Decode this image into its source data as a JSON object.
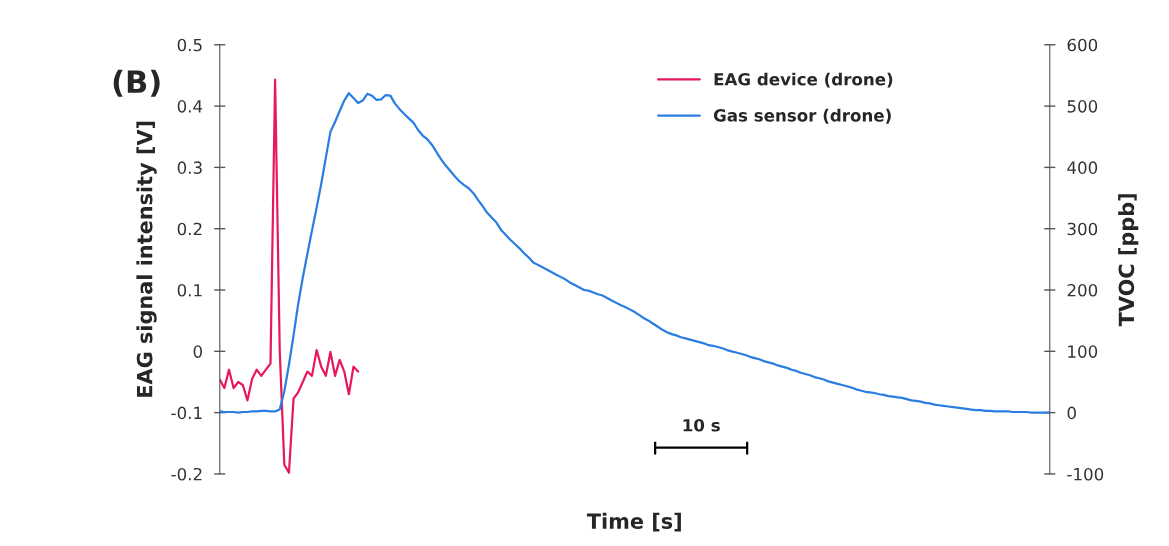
{
  "chart_data": {
    "type": "line",
    "title": "(B)",
    "xlabel": "Time [s]",
    "ylabel": "EAG signal intensity [V]",
    "y2label": "TVOC [ppb]",
    "categories": [
      null,
      null,
      null,
      null,
      null,
      null,
      null,
      null,
      null,
      null,
      null,
      null,
      null,
      null,
      null,
      null,
      null,
      null,
      null,
      null,
      null,
      null,
      null,
      null,
      null,
      null,
      null,
      null,
      null,
      null,
      null,
      null,
      null,
      null,
      null,
      null,
      null,
      null,
      null,
      null,
      null,
      null,
      null,
      null,
      null,
      null,
      null,
      null,
      null,
      null,
      null,
      null,
      null,
      null,
      null,
      null,
      null,
      null,
      null,
      null,
      null,
      null,
      null,
      null,
      null,
      null,
      null,
      null,
      null,
      null,
      null,
      null,
      null,
      null,
      null,
      null,
      null,
      null,
      null,
      null,
      null,
      null,
      null,
      null,
      null,
      null,
      null,
      null,
      null,
      null,
      null,
      null,
      null,
      null,
      null,
      null,
      null,
      null,
      null,
      null,
      null,
      null,
      null,
      null,
      null,
      null,
      null,
      null,
      null,
      null,
      null,
      null,
      null,
      null,
      null,
      null,
      null,
      null,
      null,
      null,
      null,
      null,
      null,
      null,
      null,
      null,
      null,
      null,
      null,
      null,
      null,
      null,
      null,
      null,
      null,
      null,
      null,
      null,
      null,
      null,
      null,
      null,
      null,
      null,
      null,
      null,
      null,
      null,
      null,
      null,
      null,
      null,
      null,
      null,
      null,
      null,
      null,
      null,
      null,
      null,
      null,
      null,
      null,
      null,
      null,
      null,
      null,
      null,
      null,
      null,
      null,
      null,
      null,
      null,
      null,
      null,
      null,
      null,
      null,
      null,
      null
    ],
    "ylim": [
      -0.2,
      0.5
    ],
    "yticks": [
      -0.2,
      -0.1,
      0,
      0.1,
      0.2,
      0.3,
      0.4,
      0.5
    ],
    "y2lim": [
      -100,
      600
    ],
    "y2ticks": [
      -100,
      0,
      100,
      200,
      300,
      400,
      500,
      600
    ],
    "tick_labels": "y",
    "grid": false,
    "legend": "top right",
    "annotations": [
      "10 s"
    ],
    "series": [
      {
        "name": "EAG device (drone)",
        "color": "#e8195a",
        "values": [
          -0.046,
          -0.06,
          -0.03,
          -0.06,
          -0.05,
          -0.055,
          -0.08,
          -0.045,
          -0.03,
          -0.04,
          -0.03,
          -0.02,
          0.443,
          0.002,
          -0.185,
          -0.198,
          -0.077,
          -0.067,
          -0.05,
          -0.033,
          -0.04,
          0.002,
          -0.025,
          -0.04,
          -0.001,
          -0.04,
          -0.014,
          -0.033,
          -0.07,
          -0.025,
          -0.033,
          null,
          null,
          null,
          null,
          null,
          null,
          null,
          null,
          null,
          null,
          null,
          null,
          null,
          null,
          null,
          null,
          null,
          null,
          null,
          null,
          null,
          null,
          null,
          null,
          null,
          null,
          null,
          null,
          null,
          null,
          null,
          null,
          null,
          null,
          null,
          null,
          null,
          null,
          null,
          null,
          null,
          null,
          null,
          null,
          null,
          null,
          null,
          null,
          null,
          null,
          null,
          null,
          null,
          null,
          null,
          null,
          null,
          null,
          null,
          null,
          null,
          null,
          null,
          null,
          null,
          null,
          null,
          null,
          null,
          null,
          null,
          null,
          null,
          null,
          null,
          null,
          null,
          null,
          null,
          null,
          null,
          null,
          null,
          null,
          null,
          null,
          null,
          null,
          null,
          null,
          null,
          null,
          null,
          null,
          null,
          null,
          null,
          null,
          null,
          null,
          null,
          null,
          null,
          null,
          null,
          null,
          null,
          null,
          null,
          null,
          null,
          null,
          null,
          null,
          null,
          null,
          null,
          null,
          null,
          null,
          null,
          null,
          null,
          null,
          null,
          null,
          null,
          null,
          null,
          null,
          null,
          null,
          null,
          null,
          null,
          null,
          null,
          null,
          null,
          null,
          null,
          null,
          null,
          null,
          null,
          null,
          null,
          null,
          null,
          null
        ]
      },
      {
        "name": "Gas sensor (drone)",
        "color": "#2a7de1",
        "axis": "y2",
        "values": [
          2,
          1,
          1,
          1,
          0,
          1,
          1,
          2,
          2,
          3,
          3,
          2,
          2,
          5,
          35,
          78,
          126,
          177,
          220,
          259,
          297,
          334,
          373,
          416,
          458,
          474,
          492,
          509,
          521,
          513,
          505,
          509,
          520,
          517,
          510,
          511,
          518,
          517,
          504,
          495,
          487,
          480,
          473,
          461,
          452,
          446,
          437,
          425,
          413,
          403,
          394,
          385,
          377,
          371,
          366,
          358,
          347,
          337,
          326,
          318,
          310,
          298,
          290,
          282,
          275,
          268,
          260,
          253,
          245,
          241,
          237,
          233,
          229,
          225,
          221,
          217,
          212,
          208,
          204,
          200,
          199,
          196,
          193,
          191,
          187,
          183,
          179,
          175,
          172,
          168,
          164,
          159,
          154,
          150,
          145,
          140,
          135,
          131,
          128,
          126,
          123,
          121,
          119,
          117,
          115,
          113,
          110,
          109,
          107,
          105,
          102,
          100,
          98,
          96,
          94,
          91,
          89,
          87,
          84,
          82,
          80,
          77,
          75,
          73,
          70,
          68,
          65,
          63,
          61,
          58,
          56,
          54,
          51,
          49,
          47,
          45,
          43,
          41,
          38,
          36,
          34,
          33,
          32,
          30,
          29,
          27,
          26,
          25,
          24,
          22,
          20,
          19,
          18,
          16,
          15,
          13,
          12,
          11,
          10,
          9,
          8,
          7,
          6,
          5,
          4,
          4,
          3,
          3,
          2,
          2,
          2,
          2,
          1,
          1,
          1,
          1,
          0,
          0,
          0,
          0,
          0
        ]
      }
    ]
  }
}
